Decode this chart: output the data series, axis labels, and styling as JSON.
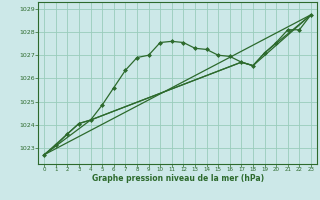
{
  "background_color": "#cce8e8",
  "grid_color": "#99ccbb",
  "line_color": "#2d6a2d",
  "title": "Graphe pression niveau de la mer (hPa)",
  "xlim": [
    -0.5,
    23.5
  ],
  "ylim": [
    1022.3,
    1029.3
  ],
  "yticks": [
    1023,
    1024,
    1025,
    1026,
    1027,
    1028,
    1029
  ],
  "xticks": [
    0,
    1,
    2,
    3,
    4,
    5,
    6,
    7,
    8,
    9,
    10,
    11,
    12,
    13,
    14,
    15,
    16,
    17,
    18,
    19,
    20,
    21,
    22,
    23
  ],
  "main_x": [
    0,
    1,
    2,
    3,
    4,
    5,
    6,
    7,
    8,
    9,
    10,
    11,
    12,
    13,
    14,
    15,
    16,
    17,
    18,
    19,
    20,
    21,
    22,
    23
  ],
  "main_y": [
    1022.7,
    1023.1,
    1023.6,
    1024.05,
    1024.2,
    1024.85,
    1025.6,
    1026.35,
    1026.9,
    1027.0,
    1027.55,
    1027.6,
    1027.55,
    1027.3,
    1027.25,
    1027.0,
    1026.95,
    1026.7,
    1026.55,
    1027.1,
    1027.55,
    1028.1,
    1028.1,
    1028.75
  ],
  "trend1_x": [
    0,
    23
  ],
  "trend1_y": [
    1022.7,
    1028.75
  ],
  "trend2_x": [
    0,
    3,
    4,
    17,
    18,
    23
  ],
  "trend2_y": [
    1022.7,
    1024.05,
    1024.2,
    1026.7,
    1026.55,
    1028.75
  ],
  "trend3_x": [
    0,
    4,
    17,
    18,
    19,
    23
  ],
  "trend3_y": [
    1022.7,
    1024.2,
    1026.7,
    1026.55,
    1027.1,
    1028.75
  ]
}
